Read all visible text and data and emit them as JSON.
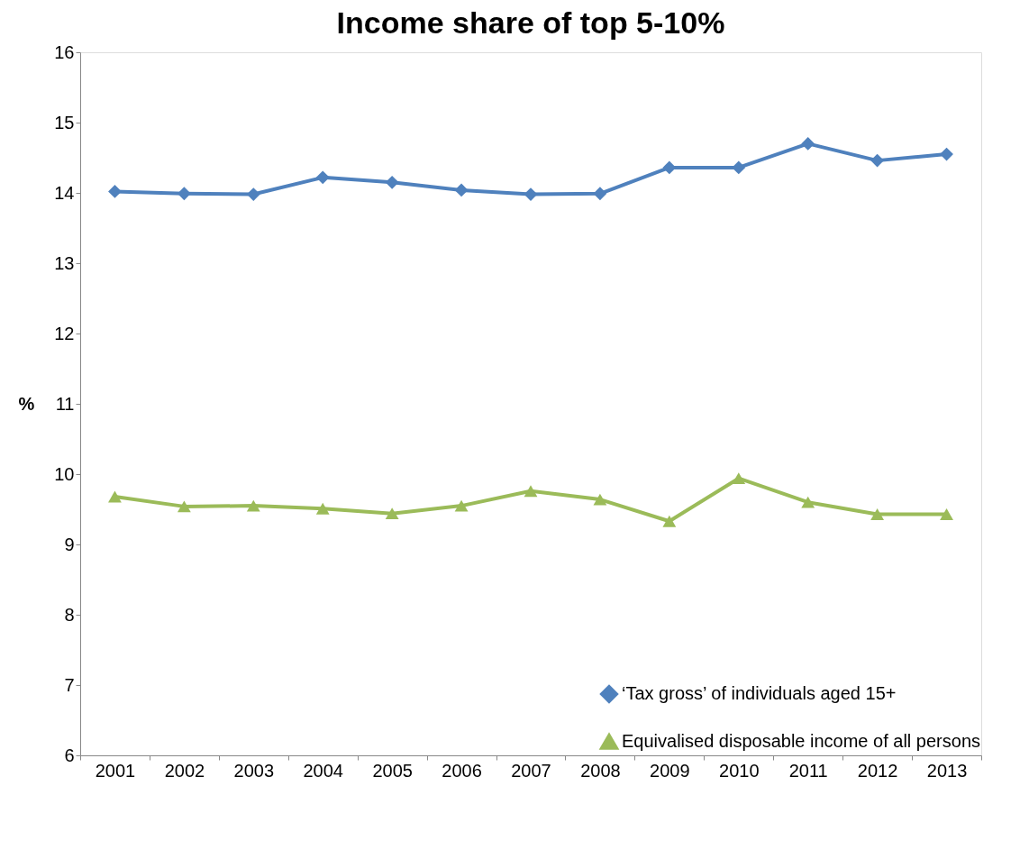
{
  "chart_data": {
    "type": "line",
    "title": "Income share of top 5-10%",
    "ylabel": "%",
    "categories": [
      "2001",
      "2002",
      "2003",
      "2004",
      "2005",
      "2006",
      "2007",
      "2008",
      "2009",
      "2010",
      "2011",
      "2012",
      "2013"
    ],
    "series": [
      {
        "name": "‘Tax gross’ of individuals aged 15+",
        "color": "#4f81bd",
        "marker": "diamond",
        "values": [
          14.02,
          13.99,
          13.98,
          14.22,
          14.15,
          14.04,
          13.98,
          13.99,
          14.36,
          14.36,
          14.7,
          14.46,
          14.55
        ]
      },
      {
        "name": "Equivalised disposable income of all persons",
        "color": "#9bbb59",
        "marker": "triangle",
        "values": [
          9.68,
          9.54,
          9.55,
          9.51,
          9.44,
          9.55,
          9.76,
          9.64,
          9.33,
          9.94,
          9.6,
          9.43,
          9.43
        ]
      }
    ],
    "ylim": [
      6,
      16
    ],
    "yticks": [
      6,
      7,
      8,
      9,
      10,
      11,
      12,
      13,
      14,
      15,
      16
    ],
    "grid": false,
    "legend": "bottom right",
    "line_style": "solid"
  }
}
